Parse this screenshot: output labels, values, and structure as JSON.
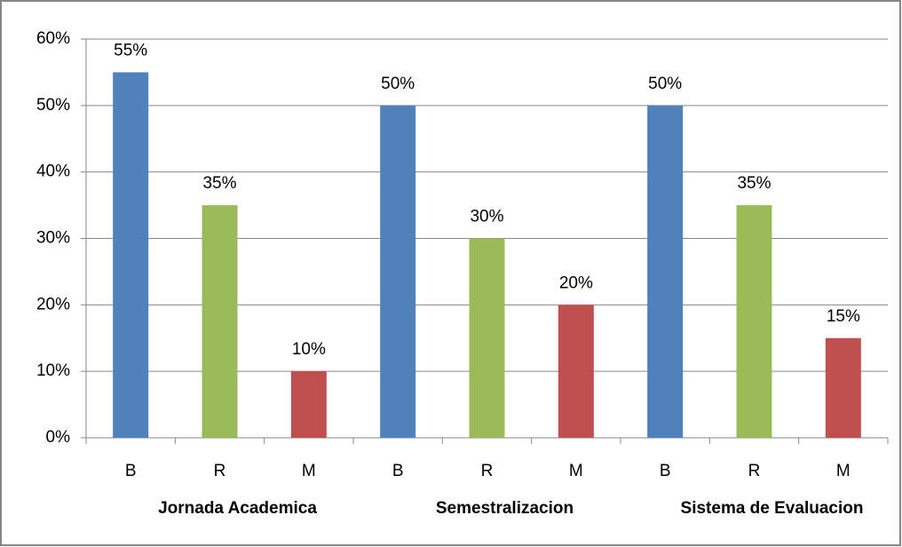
{
  "chart_data": {
    "type": "bar",
    "categories": [
      "B",
      "R",
      "M",
      "B",
      "R",
      "M",
      "B",
      "R",
      "M"
    ],
    "groups": [
      "Jornada Academica",
      "Semestralizacion",
      "Sistema de Evaluacion"
    ],
    "values": [
      55,
      35,
      10,
      50,
      30,
      20,
      50,
      35,
      15
    ],
    "value_labels": [
      "55%",
      "35%",
      "10%",
      "50%",
      "30%",
      "20%",
      "50%",
      "35%",
      "15%"
    ],
    "colors": [
      "#4f81bd",
      "#9bbb59",
      "#c0504d",
      "#4f81bd",
      "#9bbb59",
      "#c0504d",
      "#4f81bd",
      "#9bbb59",
      "#c0504d"
    ],
    "ylim": [
      0,
      60
    ],
    "yticks": [
      {
        "value": 0,
        "label": "0%"
      },
      {
        "value": 10,
        "label": "10%"
      },
      {
        "value": 20,
        "label": "20%"
      },
      {
        "value": 30,
        "label": "30%"
      },
      {
        "value": 40,
        "label": "40%"
      },
      {
        "value": 50,
        "label": "50%"
      },
      {
        "value": 60,
        "label": "60%"
      }
    ],
    "grid": true
  }
}
